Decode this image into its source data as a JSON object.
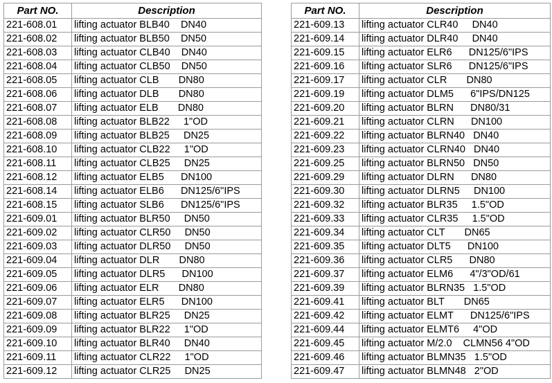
{
  "headers": {
    "part_no": "Part NO.",
    "description": "Description"
  },
  "left_rows": [
    [
      "221-608.01",
      "lifting actuator BLB40    DN40"
    ],
    [
      "221-608.02",
      "lifting actuator BLB50    DN50"
    ],
    [
      "221-608.03",
      "lifting actuator CLB40    DN40"
    ],
    [
      "221-608.04",
      "lifting actuator CLB50    DN50"
    ],
    [
      "221-608.05",
      "lifting actuator CLB       DN80"
    ],
    [
      "221-608.06",
      "lifting actuator DLB       DN80"
    ],
    [
      "221-608.07",
      "lifting actuator ELB       DN80"
    ],
    [
      "221-608.08",
      "lifting actuator BLB22     1\"OD"
    ],
    [
      "221-608.09",
      "lifting actuator BLB25     DN25"
    ],
    [
      "221-608.10",
      "lifting actuator CLB22     1\"OD"
    ],
    [
      "221-608.11",
      "lifting actuator CLB25     DN25"
    ],
    [
      "221-608.12",
      "lifting actuator ELB5      DN100"
    ],
    [
      "221-608.14",
      "lifting actuator ELB6      DN125/6\"IPS"
    ],
    [
      "221-608.15",
      "lifting actuator SLB6      DN125/6\"IPS"
    ],
    [
      "221-609.01",
      "lifting actuator BLR50     DN50"
    ],
    [
      "221-609.02",
      "lifting actuator CLR50     DN50"
    ],
    [
      "221-609.03",
      "lifting actuator DLR50     DN50"
    ],
    [
      "221-609.04",
      "lifting actuator DLR       DN80"
    ],
    [
      "221-609.05",
      "lifting actuator DLR5      DN100"
    ],
    [
      "221-609.06",
      "lifting actuator ELR       DN80"
    ],
    [
      "221-609.07",
      "lifting actuator ELR5      DN100"
    ],
    [
      "221-609.08",
      "lifting actuator BLR25     DN25"
    ],
    [
      "221-609.09",
      "lifting actuator BLR22     1\"OD"
    ],
    [
      "221-609.10",
      "lifting actuator BLR40     DN40"
    ],
    [
      "221-609.11",
      "lifting actuator CLR22     1\"OD"
    ],
    [
      "221-609.12",
      "lifting actuator CLR25     DN25"
    ]
  ],
  "right_rows": [
    [
      "221-609.13",
      "lifting actuator CLR40     DN40"
    ],
    [
      "221-609.14",
      "lifting actuator DLR40     DN40"
    ],
    [
      "221-609.15",
      "lifting actuator ELR6      DN125/6\"IPS"
    ],
    [
      "221-609.16",
      "lifting actuator SLR6      DN125/6\"IPS"
    ],
    [
      "221-609.17",
      "lifting actuator CLR       DN80"
    ],
    [
      "221-609.19",
      "lifting actuator DLM5      6\"IPS/DN125"
    ],
    [
      "221-609.20",
      "lifting actuator BLRN      DN80/31"
    ],
    [
      "221-609.21",
      "lifting actuator CLRN      DN100"
    ],
    [
      "221-609.22",
      "lifting actuator BLRN40   DN40"
    ],
    [
      "221-609.23",
      "lifting actuator CLRN40   DN40"
    ],
    [
      "221-609.25",
      "lifting actuator BLRN50   DN50"
    ],
    [
      "221-609.29",
      "lifting actuator DLRN      DN80"
    ],
    [
      "221-609.30",
      "lifting actuator DLRN5     DN100"
    ],
    [
      "221-609.32",
      "lifting actuator BLR35     1.5\"OD"
    ],
    [
      "221-609.33",
      "lifting actuator CLR35     1.5\"OD"
    ],
    [
      "221-609.34",
      "lifting actuator CLT       DN65"
    ],
    [
      "221-609.35",
      "lifting actuator DLT5      DN100"
    ],
    [
      "221-609.36",
      "lifting actuator CLR5      DN80"
    ],
    [
      "221-609.37",
      "lifting actuator ELM6      4\"/3\"OD/61"
    ],
    [
      "221-609.39",
      "lifting actuator BLRN35   1.5\"OD"
    ],
    [
      "221-609.41",
      "lifting actuator BLT       DN65"
    ],
    [
      "221-609.42",
      "lifting actuator ELMT      DN125/6\"IPS"
    ],
    [
      "221-609.44",
      "lifting actuator ELMT6     4\"OD"
    ],
    [
      "221-609.45",
      "lifting actuator M/2.0    CLMN56 4\"OD"
    ],
    [
      "221-609.46",
      "lifting actuator BLMN35   1.5\"OD"
    ],
    [
      "221-609.47",
      "lifting actuator BLMN48   2\"OD"
    ]
  ]
}
